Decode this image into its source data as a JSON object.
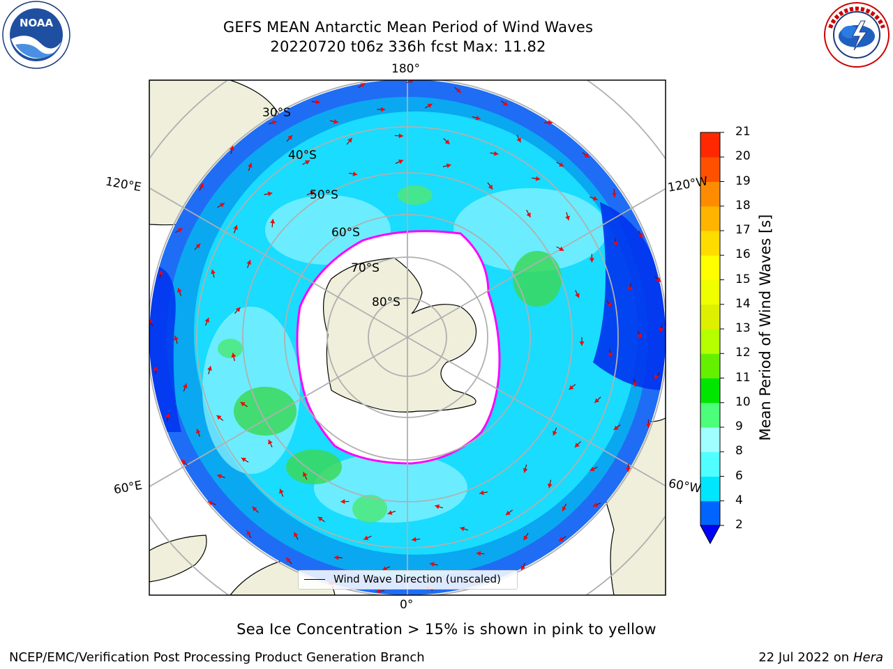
{
  "header": {
    "title_line1": "GEFS MEAN Antarctic Mean Period of Wind Waves",
    "title_line2": "20220720 t06z 336h fcst   Max: 11.82"
  },
  "logos": {
    "left": {
      "icon": "noaa-logo-icon",
      "text": "NOAA"
    },
    "right": {
      "icon": "national-weather-service-logo-icon"
    }
  },
  "map": {
    "projection": "south polar stereographic",
    "longitude_labels": {
      "top": "180°",
      "left_upper": "120°E",
      "right_upper": "120°W",
      "left_lower": "60°E",
      "right_lower": "60°W",
      "bottom": "0°"
    },
    "latitude_labels": [
      "30°S",
      "40°S",
      "50°S",
      "60°S",
      "70°S",
      "80°S"
    ],
    "legend_entry": "Wind Wave Direction (unscaled)",
    "vector_color": "#ff0000",
    "ice_edge_colors": [
      "#ff00ff",
      "#ffff00"
    ]
  },
  "colorbar": {
    "label": "Mean Period of Wind Waves [s]",
    "ticks": [
      "2",
      "4",
      "6",
      "8",
      "9",
      "10",
      "11",
      "12",
      "13",
      "14",
      "15",
      "16",
      "17",
      "18",
      "19",
      "20",
      "21"
    ],
    "colors": [
      "#0064ff",
      "#00e6ff",
      "#50ffff",
      "#a0ffff",
      "#4cff7a",
      "#00e600",
      "#64f000",
      "#b4ff00",
      "#dcf000",
      "#f0ff00",
      "#ffff00",
      "#ffdc00",
      "#ffb400",
      "#ff8c00",
      "#ff5000",
      "#ff2800",
      "#ff0000"
    ],
    "under_color": "#0000ff"
  },
  "caption": "Sea Ice Concentration > 15% is shown in pink to yellow",
  "footer": {
    "left": "NCEP/EMC/Verification Post Processing Product Generation Branch",
    "right_prefix": "22 Jul 2022 on ",
    "right_host": "Hera"
  }
}
